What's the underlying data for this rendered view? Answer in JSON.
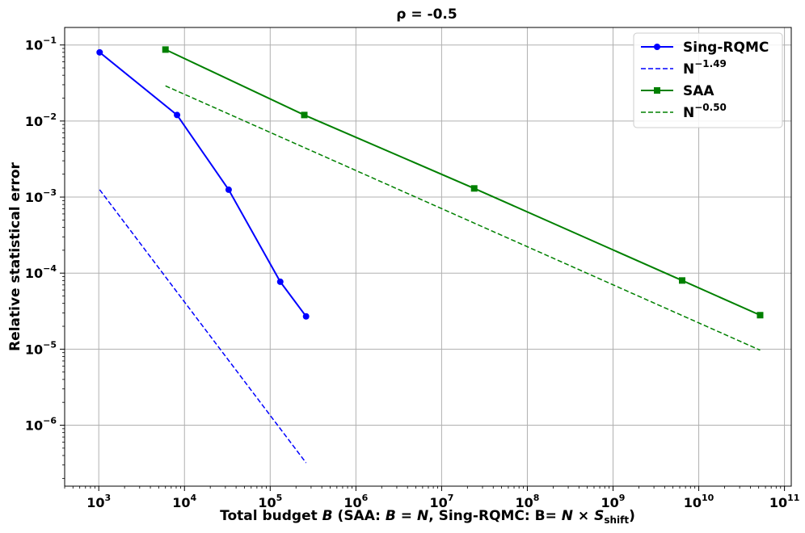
{
  "chart_data": {
    "type": "line",
    "title": "ρ = -0.5",
    "xlabel": "Total budget B (SAA: B = N, Sing-RQMC: B= N × S_shift)",
    "xlabel_parts": {
      "pre": "Total budget ",
      "b": "B",
      "mid1": " (SAA: ",
      "b2": "B",
      "eq": " = ",
      "n": "N",
      "mid2": ", Sing-RQMC: B= ",
      "n2": "N",
      "times": " × ",
      "s": "S",
      "sub": "shift",
      "close": ")"
    },
    "ylabel": "Relative statistical error",
    "xscale": "log",
    "yscale": "log",
    "xlim": [
      400,
      120000000000
    ],
    "ylim": [
      1.58e-07,
      0.17
    ],
    "grid": true,
    "legend_position": "top-right",
    "x_ticks": [
      {
        "base": "10",
        "exp": "3"
      },
      {
        "base": "10",
        "exp": "4"
      },
      {
        "base": "10",
        "exp": "5"
      },
      {
        "base": "10",
        "exp": "6"
      },
      {
        "base": "10",
        "exp": "7"
      },
      {
        "base": "10",
        "exp": "8"
      },
      {
        "base": "10",
        "exp": "9"
      },
      {
        "base": "10",
        "exp": "10"
      },
      {
        "base": "10",
        "exp": "11"
      }
    ],
    "y_ticks": [
      {
        "base": "10",
        "exp": "−6"
      },
      {
        "base": "10",
        "exp": "−5"
      },
      {
        "base": "10",
        "exp": "−4"
      },
      {
        "base": "10",
        "exp": "−3"
      },
      {
        "base": "10",
        "exp": "−2"
      },
      {
        "base": "10",
        "exp": "−1"
      }
    ],
    "series": [
      {
        "name": "Sing-RQMC",
        "color": "#0000ff",
        "style": "solid",
        "marker": "circle",
        "x": [
          1024,
          8192,
          32768,
          131072,
          262144
        ],
        "y": [
          0.08,
          0.012,
          0.00125,
          7.7e-05,
          2.7e-05
        ]
      },
      {
        "name": "N^-1.49",
        "legend_base": "N",
        "legend_exp": "−1.49",
        "color": "#0000ff",
        "style": "dashed",
        "marker": "none",
        "x": [
          1024,
          262144
        ],
        "y": [
          0.00125,
          3.2e-07
        ]
      },
      {
        "name": "SAA",
        "color": "#008000",
        "style": "solid",
        "marker": "square",
        "x": [
          6000,
          250000,
          24000000,
          6400000000,
          52000000000
        ],
        "y": [
          0.087,
          0.012,
          0.0013,
          8e-05,
          2.8e-05
        ]
      },
      {
        "name": "N^-0.50",
        "legend_base": "N",
        "legend_exp": "−0.50",
        "color": "#008000",
        "style": "dashed",
        "marker": "none",
        "x": [
          6000,
          52000000000
        ],
        "y": [
          0.029,
          9.7e-06
        ]
      }
    ]
  }
}
